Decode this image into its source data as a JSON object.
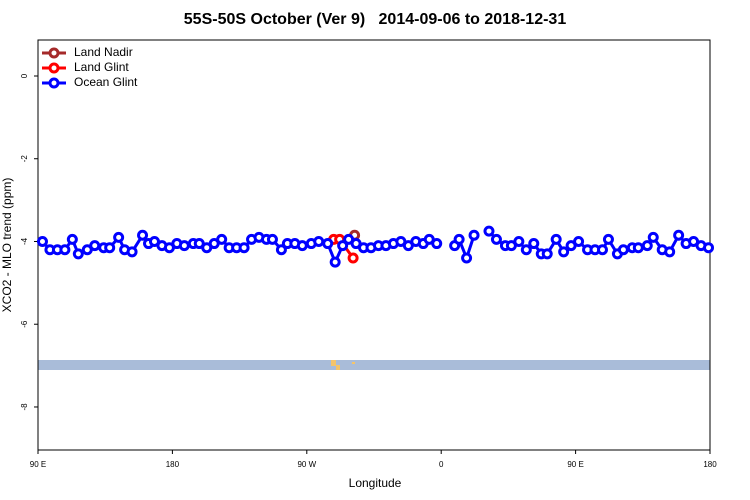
{
  "chart_data": {
    "type": "line",
    "title": "55S-50S October (Ver 9)   2014-09-06 to 2018-12-31",
    "xlabel": "Longitude",
    "ylabel": "XCO2 - MLO trend (ppm)",
    "xlim": [
      90,
      540
    ],
    "xticks": [
      {
        "value": 90,
        "label": "90 E"
      },
      {
        "value": 180,
        "label": "180"
      },
      {
        "value": 270,
        "label": "90 W"
      },
      {
        "value": 360,
        "label": "0"
      },
      {
        "value": 450,
        "label": "90 E"
      },
      {
        "value": 540,
        "label": "180"
      }
    ],
    "ylim": [
      -9.04,
      0.87
    ],
    "yticks": [
      0,
      -2,
      -4,
      -6,
      -8
    ],
    "legend": "top-left",
    "series": [
      {
        "name": "Land Nadir",
        "color": "#a52a2a",
        "x": [
          302
        ],
        "values": [
          -3.85
        ]
      },
      {
        "name": "Land Glint",
        "color": "#ff0000",
        "x": [
          288,
          292,
          301
        ],
        "values": [
          -3.95,
          -3.95,
          -4.4
        ]
      },
      {
        "name": "Ocean Glint",
        "color": "#0000ff",
        "x": [
          93,
          98,
          103,
          108,
          113,
          117,
          123,
          128,
          134,
          138,
          144,
          148,
          153,
          160,
          164,
          168,
          173,
          178,
          183,
          188,
          194,
          198,
          203,
          208,
          213,
          218,
          223,
          228,
          233,
          238,
          243,
          247,
          253,
          257,
          262,
          267,
          273,
          278,
          284,
          289,
          294,
          298,
          303,
          308,
          313,
          318,
          323,
          328,
          333,
          338,
          343,
          348,
          352,
          357,
          361,
          369,
          372,
          377,
          382,
          387,
          392,
          397,
          403,
          407,
          412,
          417,
          422,
          427,
          431,
          437,
          442,
          447,
          452,
          458,
          463,
          468,
          472,
          478,
          482,
          488,
          492,
          498,
          502,
          508,
          513,
          519,
          524,
          529,
          534,
          539
        ],
        "values": [
          -4.0,
          -4.2,
          -4.2,
          -4.2,
          -3.95,
          -4.3,
          -4.2,
          -4.1,
          -4.15,
          -4.15,
          -3.9,
          -4.2,
          -4.25,
          -3.85,
          -4.05,
          -4.0,
          -4.1,
          -4.15,
          -4.05,
          -4.1,
          -4.05,
          -4.05,
          -4.15,
          -4.05,
          -3.95,
          -4.15,
          -4.15,
          -4.15,
          -3.95,
          -3.9,
          -3.95,
          -3.95,
          -4.2,
          -4.05,
          -4.05,
          -4.1,
          -4.05,
          -4.0,
          -4.05,
          -4.5,
          -4.1,
          -3.95,
          -4.05,
          -4.15,
          -4.15,
          -4.1,
          -4.1,
          -4.05,
          -4.0,
          -4.1,
          -4.0,
          -4.05,
          -3.95,
          -4.05,
          null,
          -4.1,
          -3.95,
          -4.4,
          -3.85,
          null,
          -3.75,
          -3.95,
          -4.1,
          -4.1,
          -4.0,
          -4.2,
          -4.05,
          -4.3,
          -4.3,
          -3.95,
          -4.25,
          -4.1,
          -4.0,
          -4.2,
          -4.2,
          -4.2,
          -3.95,
          -4.3,
          -4.2,
          -4.15,
          -4.15,
          -4.1,
          -3.9,
          -4.2,
          -4.25,
          -3.85,
          -4.05,
          -4.0,
          -4.1,
          -4.15
        ]
      }
    ]
  }
}
